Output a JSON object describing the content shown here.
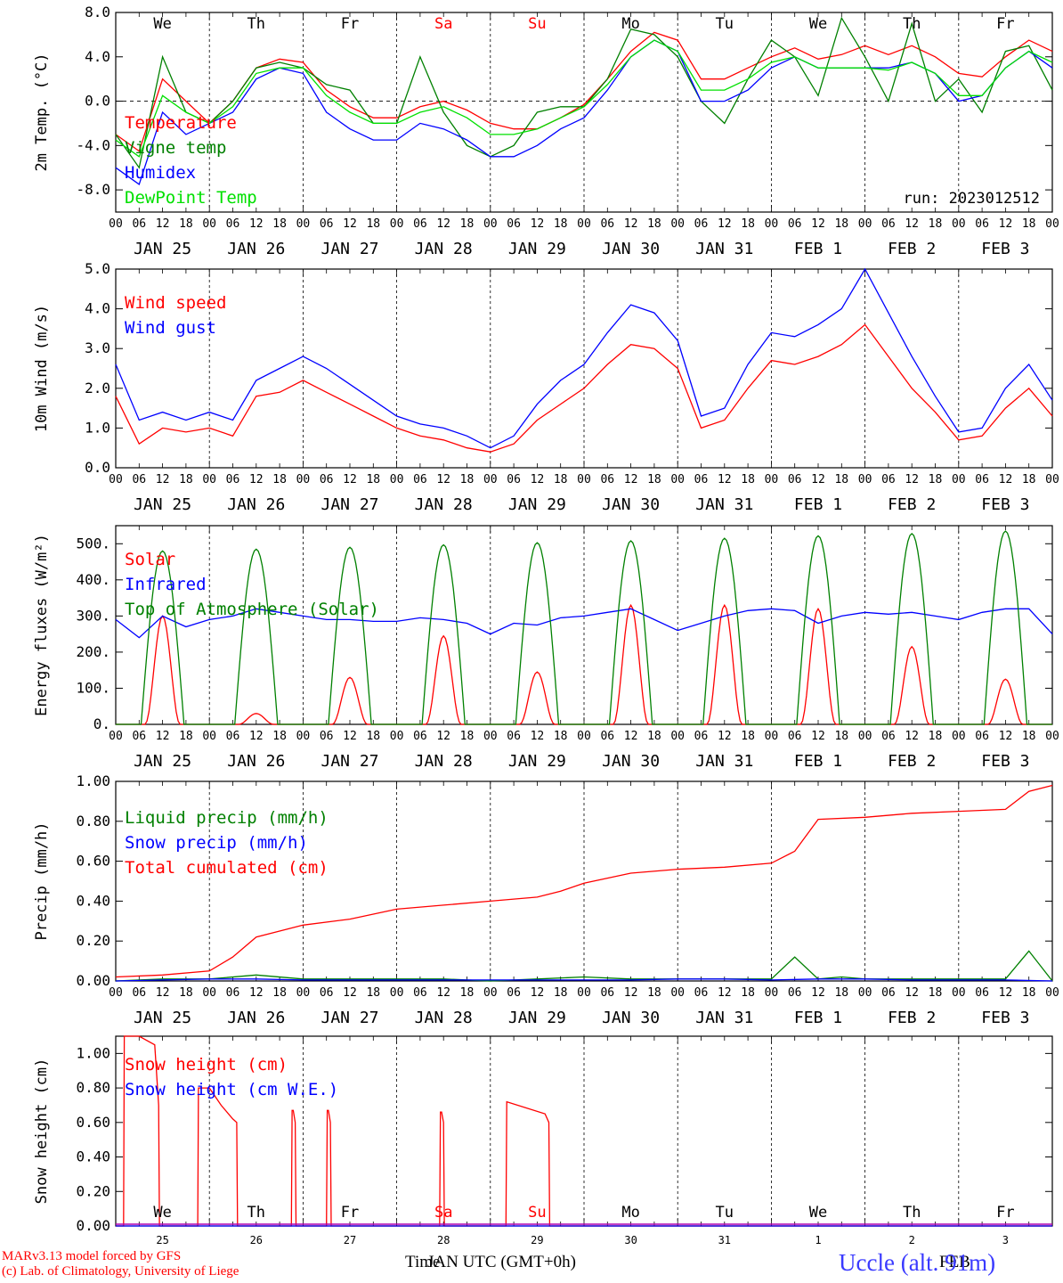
{
  "run_label": "run: 2023012512",
  "x_axis": {
    "hours": [
      "00",
      "06",
      "12",
      "18"
    ],
    "date_labels": [
      "JAN 25",
      "JAN 26",
      "JAN 27",
      "JAN 28",
      "JAN 29",
      "JAN 30",
      "JAN 31",
      "FEB  1",
      "FEB  2",
      "FEB  3"
    ],
    "day_names": [
      "We",
      "Th",
      "Fr",
      "Sa",
      "Su",
      "Mo",
      "Tu",
      "We",
      "Th",
      "Fr"
    ],
    "day_colors": [
      "#000000",
      "#000000",
      "#000000",
      "#ff0000",
      "#ff0000",
      "#000000",
      "#000000",
      "#000000",
      "#000000",
      "#000000"
    ],
    "day_numbers": [
      "25",
      "26",
      "27",
      "28",
      "29",
      "30",
      "31",
      "1",
      "2",
      "3"
    ],
    "bottom_title": "Time",
    "bottom_month": "JAN UTC (GMT+0h)",
    "bottom_month2": "FEB"
  },
  "footer": {
    "model": "MARv3.13 model forced by GFS",
    "credit": "(c) Lab. of Climatology, University of Liege",
    "station": "Uccle (alt. 91m)"
  },
  "chart_data": [
    {
      "type": "line",
      "ylabel": "2m Temp. (°C)",
      "ylim": [
        -10,
        8
      ],
      "yticks": [
        "8.0",
        "4.0",
        "0.0",
        "-4.0",
        "-8.0"
      ],
      "ytick_values": [
        8,
        4,
        0,
        -4,
        -8
      ],
      "dashed_y": [
        0,
        8
      ],
      "x_unit": "hours since JAN 25 00 UTC",
      "series": [
        {
          "name": "Temperature",
          "color": "#ff0000",
          "x": [
            0,
            6,
            12,
            18,
            24,
            30,
            36,
            42,
            48,
            54,
            60,
            66,
            72,
            78,
            84,
            90,
            96,
            102,
            108,
            114,
            120,
            126,
            132,
            138,
            144,
            150,
            156,
            162,
            168,
            174,
            180,
            186,
            192,
            198,
            204,
            210,
            216,
            222,
            228,
            234,
            240
          ],
          "y": [
            -3,
            -4.5,
            2,
            0,
            -2,
            0,
            3,
            3.8,
            3.5,
            1,
            -0.5,
            -1.5,
            -1.5,
            -0.5,
            0,
            -0.8,
            -2,
            -2.5,
            -2.5,
            -1.5,
            -0.3,
            2,
            4.5,
            6.2,
            5.5,
            2,
            2,
            3,
            4,
            4.8,
            3.8,
            4.2,
            5,
            4.2,
            5,
            4,
            2.5,
            2.2,
            4,
            5.5,
            4.5
          ]
        },
        {
          "name": "Vigne temp",
          "color": "#008000",
          "x": [
            0,
            6,
            12,
            18,
            24,
            30,
            36,
            42,
            48,
            54,
            60,
            66,
            72,
            78,
            84,
            90,
            96,
            102,
            108,
            114,
            120,
            126,
            132,
            138,
            144,
            150,
            156,
            162,
            168,
            174,
            180,
            186,
            192,
            198,
            204,
            210,
            216,
            222,
            228,
            234,
            240
          ],
          "y": [
            -3,
            -6,
            4,
            -1,
            -2,
            0,
            3,
            3.5,
            3,
            1.5,
            1,
            -2,
            -2,
            4,
            -1,
            -4,
            -5,
            -4,
            -1,
            -0.5,
            -0.5,
            2,
            6.5,
            6,
            4,
            0,
            -2,
            2,
            5.5,
            4,
            0.5,
            7.5,
            4,
            0,
            7,
            0,
            2,
            -1,
            4.5,
            5,
            1
          ]
        },
        {
          "name": "Humidex",
          "color": "#0000ff",
          "x": [
            0,
            6,
            12,
            18,
            24,
            30,
            36,
            42,
            48,
            54,
            60,
            66,
            72,
            78,
            84,
            90,
            96,
            102,
            108,
            114,
            120,
            126,
            132,
            138,
            144,
            150,
            156,
            162,
            168,
            174,
            180,
            186,
            192,
            198,
            204,
            210,
            216,
            222,
            228,
            234,
            240
          ],
          "y": [
            -6,
            -7.5,
            -1,
            -3,
            -2,
            -1,
            2,
            3,
            2.5,
            -1,
            -2.5,
            -3.5,
            -3.5,
            -2,
            -2.5,
            -3.5,
            -5,
            -5,
            -4,
            -2.5,
            -1.5,
            1,
            4,
            5.5,
            4.5,
            0,
            0,
            1,
            3,
            4,
            3,
            3,
            3,
            3,
            3.5,
            2.5,
            0,
            0.5,
            3,
            4.5,
            3
          ]
        },
        {
          "name": "DewPoint Temp",
          "color": "#00e000",
          "x": [
            0,
            6,
            12,
            18,
            24,
            30,
            36,
            42,
            48,
            54,
            60,
            66,
            72,
            78,
            84,
            90,
            96,
            102,
            108,
            114,
            120,
            126,
            132,
            138,
            144,
            150,
            156,
            162,
            168,
            174,
            180,
            186,
            192,
            198,
            204,
            210,
            216,
            222,
            228,
            234,
            240
          ],
          "y": [
            -3.5,
            -5,
            0.5,
            -1,
            -2,
            -0.5,
            2.5,
            3,
            3,
            0.5,
            -1,
            -2,
            -2,
            -1,
            -0.5,
            -1.5,
            -3,
            -3,
            -2.5,
            -1.5,
            -0.5,
            1.5,
            4,
            5.5,
            4.5,
            1,
            1,
            2,
            3.5,
            4,
            3,
            3,
            3,
            2.8,
            3.5,
            2.5,
            0.5,
            0.5,
            3,
            4.5,
            3.5
          ]
        }
      ]
    },
    {
      "type": "line",
      "ylabel": "10m Wind (m/s)",
      "ylim": [
        0,
        5
      ],
      "yticks": [
        "5.0",
        "4.0",
        "3.0",
        "2.0",
        "1.0",
        "0.0"
      ],
      "ytick_values": [
        5,
        4,
        3,
        2,
        1,
        0
      ],
      "dashed_y": [
        5
      ],
      "x_unit": "hours since JAN 25 00 UTC",
      "series": [
        {
          "name": "Wind speed",
          "color": "#ff0000",
          "x": [
            0,
            6,
            12,
            18,
            24,
            30,
            36,
            42,
            48,
            54,
            60,
            66,
            72,
            78,
            84,
            90,
            96,
            102,
            108,
            114,
            120,
            126,
            132,
            138,
            144,
            150,
            156,
            162,
            168,
            174,
            180,
            186,
            192,
            198,
            204,
            210,
            216,
            222,
            228,
            234,
            240
          ],
          "y": [
            1.8,
            0.6,
            1,
            0.9,
            1,
            0.8,
            1.8,
            1.9,
            2.2,
            1.9,
            1.6,
            1.3,
            1,
            0.8,
            0.7,
            0.5,
            0.4,
            0.6,
            1.2,
            1.6,
            2,
            2.6,
            3.1,
            3,
            2.5,
            1,
            1.2,
            2,
            2.7,
            2.6,
            2.8,
            3.1,
            3.6,
            2.8,
            2,
            1.4,
            0.7,
            0.8,
            1.5,
            2,
            1.3
          ]
        },
        {
          "name": "Wind gust",
          "color": "#0000ff",
          "x": [
            0,
            6,
            12,
            18,
            24,
            30,
            36,
            42,
            48,
            54,
            60,
            66,
            72,
            78,
            84,
            90,
            96,
            102,
            108,
            114,
            120,
            126,
            132,
            138,
            144,
            150,
            156,
            162,
            168,
            174,
            180,
            186,
            192,
            198,
            204,
            210,
            216,
            222,
            228,
            234,
            240
          ],
          "y": [
            2.6,
            1.2,
            1.4,
            1.2,
            1.4,
            1.2,
            2.2,
            2.5,
            2.8,
            2.5,
            2.1,
            1.7,
            1.3,
            1.1,
            1,
            0.8,
            0.5,
            0.8,
            1.6,
            2.2,
            2.6,
            3.4,
            4.1,
            3.9,
            3.2,
            1.3,
            1.5,
            2.6,
            3.4,
            3.3,
            3.6,
            4,
            5,
            3.9,
            2.8,
            1.8,
            0.9,
            1,
            2,
            2.6,
            1.7
          ]
        }
      ]
    },
    {
      "type": "line",
      "ylabel": "Energy fluxes (W/m²)",
      "ylim": [
        0,
        550
      ],
      "yticks": [
        "500.",
        "400.",
        "300.",
        "200.",
        "100.",
        "0."
      ],
      "ytick_values": [
        500,
        400,
        300,
        200,
        100,
        0
      ],
      "dashed_y": [],
      "x_unit": "hours since JAN 25 00 UTC",
      "series": [
        {
          "name": "Solar",
          "color": "#ff0000",
          "peaks": [
            300,
            30,
            130,
            245,
            145,
            330,
            330,
            320,
            215,
            125
          ]
        },
        {
          "name": "Infrared",
          "color": "#0000ff",
          "x": [
            0,
            6,
            12,
            18,
            24,
            30,
            36,
            42,
            48,
            54,
            60,
            66,
            72,
            78,
            84,
            90,
            96,
            102,
            108,
            114,
            120,
            126,
            132,
            138,
            144,
            150,
            156,
            162,
            168,
            174,
            180,
            186,
            192,
            198,
            204,
            210,
            216,
            222,
            228,
            234,
            240
          ],
          "y": [
            290,
            240,
            300,
            270,
            290,
            300,
            320,
            310,
            300,
            290,
            290,
            285,
            285,
            295,
            290,
            280,
            250,
            280,
            275,
            295,
            300,
            310,
            320,
            290,
            260,
            280,
            300,
            315,
            320,
            315,
            280,
            300,
            310,
            305,
            310,
            300,
            290,
            310,
            320,
            320,
            250
          ]
        },
        {
          "name": "Top of Atmosphere (Solar)",
          "color": "#008000",
          "peaks": [
            480,
            485,
            490,
            497,
            503,
            508,
            515,
            522,
            528,
            535
          ]
        }
      ]
    },
    {
      "type": "line",
      "ylabel": "Precip (mm/h)",
      "ylim": [
        0,
        1
      ],
      "yticks": [
        "1.00",
        "0.80",
        "0.60",
        "0.40",
        "0.20",
        "0.00"
      ],
      "ytick_values": [
        1,
        0.8,
        0.6,
        0.4,
        0.2,
        0
      ],
      "dashed_y": [],
      "x_unit": "hours since JAN 25 00 UTC",
      "series": [
        {
          "name": "Liquid precip (mm/h)",
          "color": "#008000",
          "x": [
            0,
            12,
            24,
            36,
            48,
            60,
            72,
            84,
            96,
            108,
            120,
            132,
            144,
            156,
            168,
            174,
            180,
            186,
            192,
            204,
            216,
            228,
            234,
            240
          ],
          "y": [
            0,
            0.01,
            0.01,
            0.03,
            0.01,
            0.01,
            0.01,
            0.01,
            0,
            0.01,
            0.02,
            0.01,
            0.01,
            0.01,
            0.01,
            0.12,
            0.01,
            0.02,
            0.01,
            0.01,
            0.01,
            0.01,
            0.15,
            0
          ]
        },
        {
          "name": "Snow precip (mm/h)",
          "color": "#0000ff",
          "x": [
            0,
            12,
            24,
            36,
            48,
            60,
            72,
            84,
            96,
            108,
            120,
            132,
            144,
            156,
            168,
            180,
            192,
            204,
            216,
            228,
            240
          ],
          "y": [
            0,
            0.005,
            0.01,
            0.01,
            0.005,
            0.005,
            0.005,
            0.005,
            0.005,
            0.005,
            0.005,
            0.005,
            0.01,
            0.01,
            0.005,
            0.01,
            0.01,
            0.005,
            0.005,
            0.005,
            0
          ]
        },
        {
          "name": "Total cumulated (cm)",
          "color": "#ff0000",
          "x": [
            0,
            12,
            24,
            30,
            36,
            42,
            48,
            60,
            72,
            84,
            96,
            108,
            114,
            120,
            132,
            144,
            156,
            168,
            174,
            180,
            192,
            204,
            216,
            228,
            234,
            240
          ],
          "y": [
            0.02,
            0.03,
            0.05,
            0.12,
            0.22,
            0.25,
            0.28,
            0.31,
            0.36,
            0.38,
            0.4,
            0.42,
            0.45,
            0.49,
            0.54,
            0.56,
            0.57,
            0.59,
            0.65,
            0.81,
            0.82,
            0.84,
            0.85,
            0.86,
            0.95,
            0.98
          ]
        }
      ]
    },
    {
      "type": "line",
      "ylabel": "Snow height (cm)",
      "ylim": [
        0,
        1.1
      ],
      "yticks": [
        "1.00",
        "0.80",
        "0.60",
        "0.40",
        "0.20",
        "0.00"
      ],
      "ytick_values": [
        1,
        0.8,
        0.6,
        0.4,
        0.2,
        0
      ],
      "dashed_y": [],
      "x_unit": "hours since JAN 25 00 UTC",
      "series": [
        {
          "name": "Snow height (cm)",
          "color": "#ff0000",
          "x": [
            0,
            2,
            2.2,
            6,
            10,
            11,
            11.2,
            21,
            21.2,
            24,
            27,
            30,
            31,
            31.2,
            45,
            45.2,
            45.5,
            46,
            46.2,
            54,
            54.2,
            54.5,
            55,
            55.2,
            83,
            83.2,
            83.5,
            84,
            84.2,
            100,
            100.2,
            110,
            111,
            111.2,
            240
          ],
          "y": [
            0,
            0,
            1.1,
            1.1,
            1.05,
            0.7,
            0,
            0,
            0.8,
            0.8,
            0.7,
            0.62,
            0.6,
            0,
            0,
            0.67,
            0.67,
            0.6,
            0,
            0,
            0.67,
            0.67,
            0.6,
            0,
            0,
            0.66,
            0.66,
            0.6,
            0,
            0,
            0.72,
            0.65,
            0.6,
            0,
            0
          ]
        },
        {
          "name": "Snow height (cm W.E.)",
          "color": "#0000ff",
          "x": [
            0,
            240
          ],
          "y": [
            0,
            0
          ]
        }
      ]
    }
  ]
}
